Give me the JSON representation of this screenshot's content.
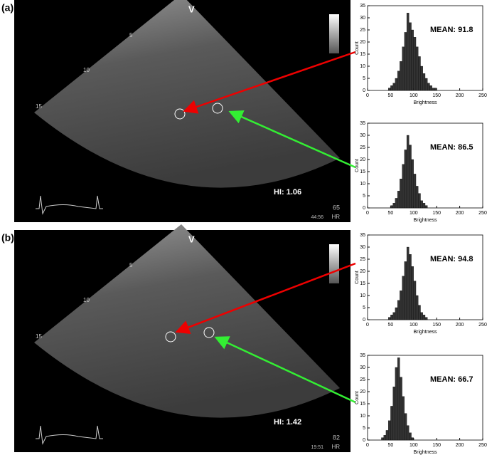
{
  "panels": [
    {
      "label": "(a)",
      "probe": "V",
      "depth_marks": [
        "5",
        "10",
        "15"
      ],
      "index": "HI: 1.06",
      "heart_rate": "65",
      "time": "44:56",
      "hr_unit": "HR"
    },
    {
      "label": "(b)",
      "probe": "V",
      "depth_marks": [
        "5",
        "10",
        "15"
      ],
      "index": "HI: 1.42",
      "heart_rate": "82",
      "time": "19:51",
      "hr_unit": "HR"
    }
  ],
  "chart_data": [
    {
      "type": "histogram",
      "annotation": "MEAN: 91.8",
      "xlabel": "Brightness",
      "ylabel": "Count",
      "bins": [
        45,
        50,
        55,
        60,
        65,
        70,
        75,
        80,
        85,
        90,
        95,
        100,
        105,
        110,
        115,
        120,
        125,
        130,
        135,
        140,
        145,
        150
      ],
      "counts": [
        1,
        2,
        3,
        5,
        8,
        12,
        18,
        24,
        32,
        28,
        25,
        22,
        18,
        14,
        10,
        7,
        5,
        3,
        2,
        1,
        1
      ],
      "color": "#333333",
      "xlim": [
        0,
        250
      ],
      "xticks": [
        0,
        50,
        100,
        150,
        200,
        250
      ],
      "ylim": [
        0,
        35
      ],
      "yticks": [
        0,
        5,
        10,
        15,
        20,
        25,
        30,
        35
      ]
    },
    {
      "type": "histogram",
      "annotation": "MEAN: 86.5",
      "xlabel": "Brightness",
      "ylabel": "Count",
      "bins": [
        50,
        55,
        60,
        65,
        70,
        75,
        80,
        85,
        90,
        95,
        100,
        105,
        110,
        115,
        120,
        125,
        130
      ],
      "counts": [
        1,
        2,
        4,
        7,
        12,
        18,
        24,
        30,
        26,
        20,
        14,
        9,
        6,
        3,
        2,
        1
      ],
      "color": "#333333",
      "xlim": [
        0,
        250
      ],
      "xticks": [
        0,
        50,
        100,
        150,
        200,
        250
      ],
      "ylim": [
        0,
        35
      ],
      "yticks": [
        0,
        5,
        10,
        15,
        20,
        25,
        30,
        35
      ]
    },
    {
      "type": "histogram",
      "annotation": "MEAN: 94.8",
      "xlabel": "Brightness",
      "ylabel": "Count",
      "bins": [
        45,
        50,
        55,
        60,
        65,
        70,
        75,
        80,
        85,
        90,
        95,
        100,
        105,
        110,
        115,
        120,
        125,
        130
      ],
      "counts": [
        1,
        2,
        3,
        5,
        8,
        12,
        18,
        24,
        30,
        27,
        22,
        16,
        10,
        6,
        3,
        2,
        1
      ],
      "color": "#333333",
      "xlim": [
        0,
        250
      ],
      "xticks": [
        0,
        50,
        100,
        150,
        200,
        250
      ],
      "ylim": [
        0,
        35
      ],
      "yticks": [
        0,
        5,
        10,
        15,
        20,
        25,
        30,
        35
      ]
    },
    {
      "type": "histogram",
      "annotation": "MEAN: 66.7",
      "xlabel": "Brightness",
      "ylabel": "Count",
      "bins": [
        30,
        35,
        40,
        45,
        50,
        55,
        60,
        65,
        70,
        75,
        80,
        85,
        90,
        95,
        100
      ],
      "counts": [
        1,
        2,
        4,
        8,
        14,
        22,
        30,
        34,
        26,
        18,
        11,
        6,
        3,
        1
      ],
      "color": "#333333",
      "xlim": [
        0,
        250
      ],
      "xticks": [
        0,
        50,
        100,
        150,
        200,
        250
      ],
      "ylim": [
        0,
        35
      ],
      "yticks": [
        0,
        5,
        10,
        15,
        20,
        25,
        30,
        35
      ]
    }
  ]
}
